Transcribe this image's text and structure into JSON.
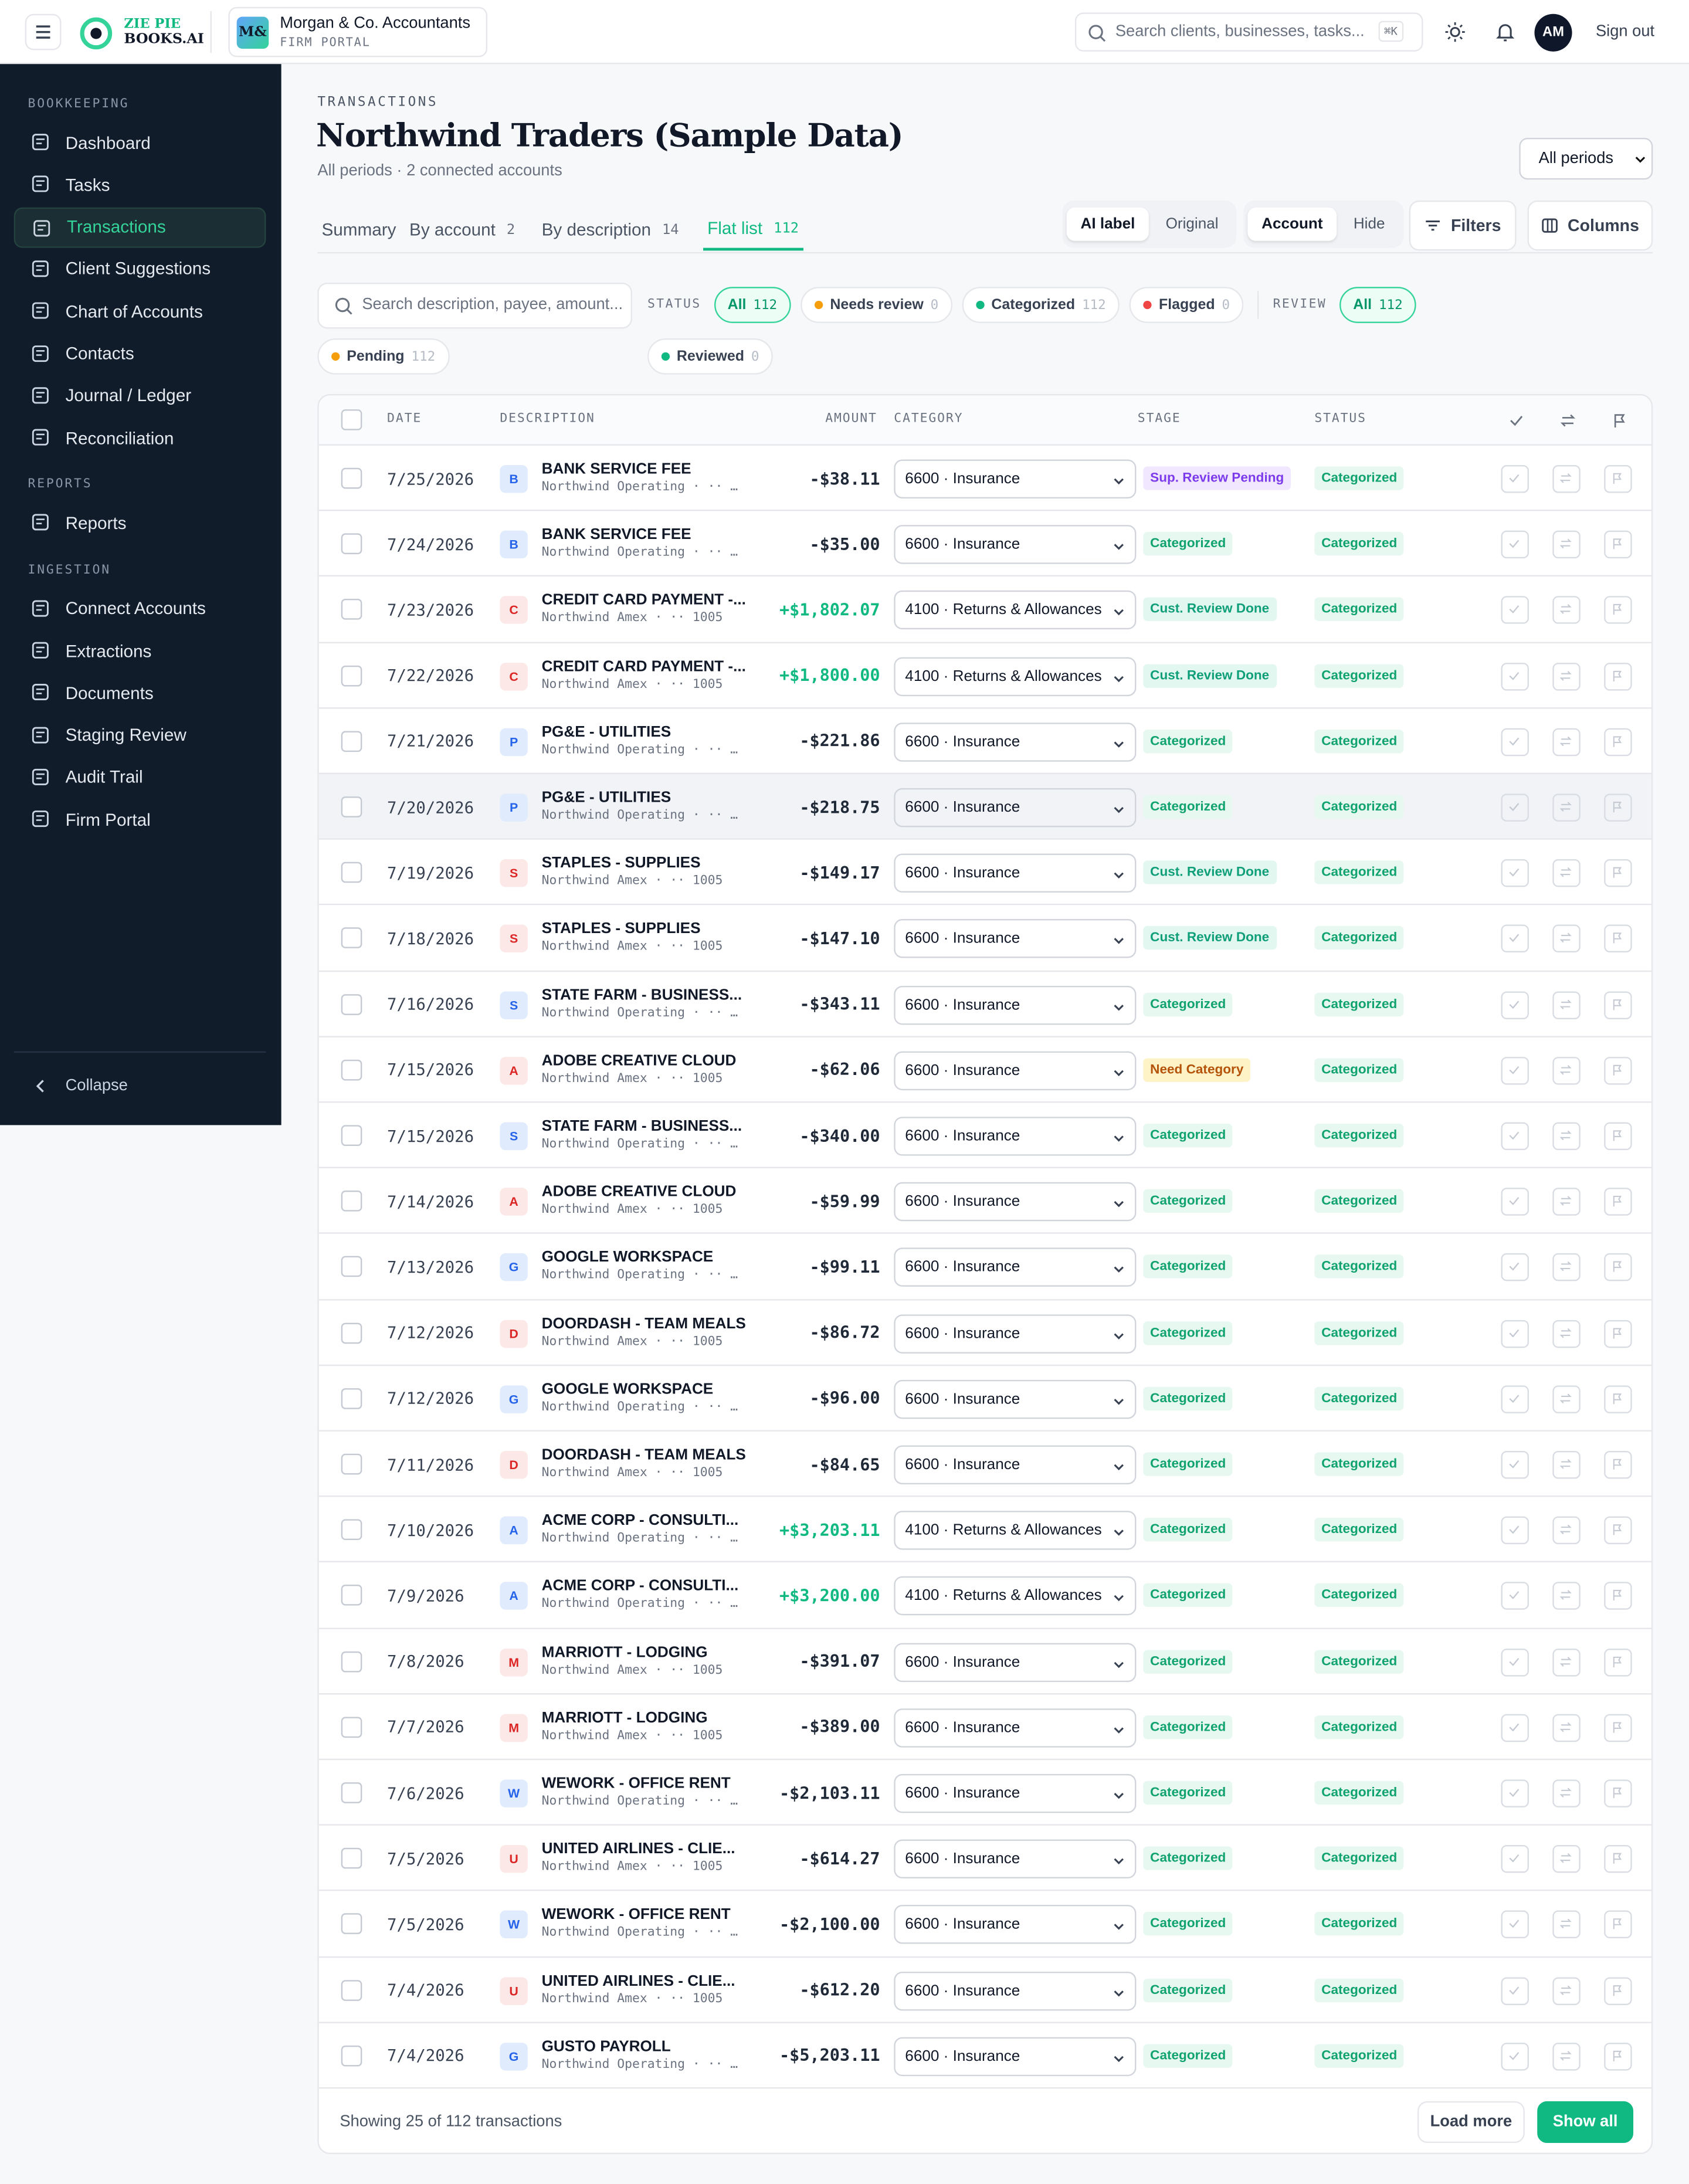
{
  "header": {
    "logo_top": "ZIE PIE",
    "logo_bottom": "BOOKS.AI",
    "firm_initials": "M&",
    "firm_name": "Morgan & Co. Accountants",
    "firm_sub": "FIRM PORTAL",
    "search_placeholder": "Search clients, businesses, tasks...",
    "search_shortcut": "⌘K",
    "avatar": "AM",
    "sign_out": "Sign out"
  },
  "sidebar": {
    "sections": [
      {
        "title": "BOOKKEEPING",
        "items": [
          "Dashboard",
          "Tasks",
          "Transactions",
          "Client Suggestions",
          "Chart of Accounts",
          "Contacts",
          "Journal / Ledger",
          "Reconciliation"
        ]
      },
      {
        "title": "REPORTS",
        "items": [
          "Reports"
        ]
      },
      {
        "title": "INGESTION",
        "items": [
          "Connect Accounts",
          "Extractions",
          "Documents",
          "Staging Review",
          "Audit Trail",
          "Firm Portal"
        ]
      }
    ],
    "active": "Transactions",
    "collapse": "Collapse"
  },
  "page": {
    "eyebrow": "TRANSACTIONS",
    "title": "Northwind Traders (Sample Data)",
    "subtitle": "All periods · 2 connected accounts",
    "period": "All periods",
    "tabs": [
      {
        "label": "Summary"
      },
      {
        "label": "By account",
        "count": 2
      },
      {
        "label": "By description",
        "count": 14
      },
      {
        "label": "Flat list",
        "count": 112,
        "active": true
      }
    ],
    "label_toggle": [
      "AI label",
      "Original"
    ],
    "account_toggle": [
      "Account",
      "Hide"
    ],
    "filters_button": "Filters",
    "columns_button": "Columns",
    "filter_search_placeholder": "Search description, payee, amount...",
    "status_label": "STATUS",
    "status_chips": [
      {
        "label": "All",
        "count": 112,
        "active": true
      },
      {
        "label": "Needs review",
        "count": 0,
        "dot": "#f59e0b"
      },
      {
        "label": "Categorized",
        "count": 112,
        "dot": "#10b981"
      },
      {
        "label": "Flagged",
        "count": 0,
        "dot": "#ef4444"
      }
    ],
    "review_label": "REVIEW",
    "review_chips": [
      {
        "label": "All",
        "count": 112,
        "active": true
      },
      {
        "label": "Reviewed",
        "count": 0,
        "dot": "#10b981"
      },
      {
        "label": "Pending",
        "count": 112,
        "dot": "#f59e0b"
      }
    ]
  },
  "table": {
    "columns": [
      "DATE",
      "DESCRIPTION",
      "AMOUNT",
      "CATEGORY",
      "STAGE",
      "STATUS"
    ],
    "stage_colors": {
      "Sup. Review Pending": [
        "#f1e8ff",
        "#7c3aed"
      ],
      "Categorized": [
        "#e7f8f0",
        "#10a36f"
      ],
      "Cust. Review Done": [
        "#e3f7f1",
        "#0e9f78"
      ],
      "Need Category": [
        "#fef3c7",
        "#b45309"
      ]
    },
    "rows": [
      {
        "date": "7/25/2026",
        "initial": "B",
        "description": "BANK SERVICE FEE",
        "account": "Northwind Operating · ·· …",
        "amount": "-$38.11",
        "category": "6600 · Insurance",
        "stage": "Sup. Review Pending",
        "status": "Categorized"
      },
      {
        "date": "7/24/2026",
        "initial": "B",
        "description": "BANK SERVICE FEE",
        "account": "Northwind Operating · ·· …",
        "amount": "-$35.00",
        "category": "6600 · Insurance",
        "stage": "Categorized",
        "status": "Categorized"
      },
      {
        "date": "7/23/2026",
        "initial": "C",
        "description": "CREDIT CARD PAYMENT -...",
        "account": "Northwind Amex · ·· 1005",
        "amount": "+$1,802.07",
        "category": "4100 · Returns & Allowances",
        "stage": "Cust. Review Done",
        "status": "Categorized"
      },
      {
        "date": "7/22/2026",
        "initial": "C",
        "description": "CREDIT CARD PAYMENT -...",
        "account": "Northwind Amex · ·· 1005",
        "amount": "+$1,800.00",
        "category": "4100 · Returns & Allowances",
        "stage": "Cust. Review Done",
        "status": "Categorized"
      },
      {
        "date": "7/21/2026",
        "initial": "P",
        "description": "PG&E - UTILITIES",
        "account": "Northwind Operating · ·· …",
        "amount": "-$221.86",
        "category": "6600 · Insurance",
        "stage": "Categorized",
        "status": "Categorized"
      },
      {
        "date": "7/20/2026",
        "initial": "P",
        "description": "PG&E - UTILITIES",
        "account": "Northwind Operating · ·· …",
        "amount": "-$218.75",
        "category": "6600 · Insurance",
        "stage": "Categorized",
        "status": "Categorized",
        "highlight": true
      },
      {
        "date": "7/19/2026",
        "initial": "S",
        "description": "STAPLES - SUPPLIES",
        "account": "Northwind Amex · ·· 1005",
        "amount": "-$149.17",
        "category": "6600 · Insurance",
        "stage": "Cust. Review Done",
        "status": "Categorized"
      },
      {
        "date": "7/18/2026",
        "initial": "S",
        "description": "STAPLES - SUPPLIES",
        "account": "Northwind Amex · ·· 1005",
        "amount": "-$147.10",
        "category": "6600 · Insurance",
        "stage": "Cust. Review Done",
        "status": "Categorized"
      },
      {
        "date": "7/16/2026",
        "initial": "S",
        "description": "STATE FARM - BUSINESS...",
        "account": "Northwind Operating · ·· …",
        "amount": "-$343.11",
        "category": "6600 · Insurance",
        "stage": "Categorized",
        "status": "Categorized"
      },
      {
        "date": "7/15/2026",
        "initial": "A",
        "description": "ADOBE CREATIVE CLOUD",
        "account": "Northwind Amex · ·· 1005",
        "amount": "-$62.06",
        "category": "6600 · Insurance",
        "stage": "Need Category",
        "status": "Categorized"
      },
      {
        "date": "7/15/2026",
        "initial": "S",
        "description": "STATE FARM - BUSINESS...",
        "account": "Northwind Operating · ·· …",
        "amount": "-$340.00",
        "category": "6600 · Insurance",
        "stage": "Categorized",
        "status": "Categorized"
      },
      {
        "date": "7/14/2026",
        "initial": "A",
        "description": "ADOBE CREATIVE CLOUD",
        "account": "Northwind Amex · ·· 1005",
        "amount": "-$59.99",
        "category": "6600 · Insurance",
        "stage": "Categorized",
        "status": "Categorized"
      },
      {
        "date": "7/13/2026",
        "initial": "G",
        "description": "GOOGLE WORKSPACE",
        "account": "Northwind Operating · ·· …",
        "amount": "-$99.11",
        "category": "6600 · Insurance",
        "stage": "Categorized",
        "status": "Categorized"
      },
      {
        "date": "7/12/2026",
        "initial": "D",
        "description": "DOORDASH - TEAM MEALS",
        "account": "Northwind Amex · ·· 1005",
        "amount": "-$86.72",
        "category": "6600 · Insurance",
        "stage": "Categorized",
        "status": "Categorized"
      },
      {
        "date": "7/12/2026",
        "initial": "G",
        "description": "GOOGLE WORKSPACE",
        "account": "Northwind Operating · ·· …",
        "amount": "-$96.00",
        "category": "6600 · Insurance",
        "stage": "Categorized",
        "status": "Categorized"
      },
      {
        "date": "7/11/2026",
        "initial": "D",
        "description": "DOORDASH - TEAM MEALS",
        "account": "Northwind Amex · ·· 1005",
        "amount": "-$84.65",
        "category": "6600 · Insurance",
        "stage": "Categorized",
        "status": "Categorized"
      },
      {
        "date": "7/10/2026",
        "initial": "A",
        "description": "ACME CORP - CONSULTI...",
        "account": "Northwind Operating · ·· …",
        "amount": "+$3,203.11",
        "category": "4100 · Returns & Allowances",
        "stage": "Categorized",
        "status": "Categorized"
      },
      {
        "date": "7/9/2026",
        "initial": "A",
        "description": "ACME CORP - CONSULTI...",
        "account": "Northwind Operating · ·· …",
        "amount": "+$3,200.00",
        "category": "4100 · Returns & Allowances",
        "stage": "Categorized",
        "status": "Categorized"
      },
      {
        "date": "7/8/2026",
        "initial": "M",
        "description": "MARRIOTT - LODGING",
        "account": "Northwind Amex · ·· 1005",
        "amount": "-$391.07",
        "category": "6600 · Insurance",
        "stage": "Categorized",
        "status": "Categorized"
      },
      {
        "date": "7/7/2026",
        "initial": "M",
        "description": "MARRIOTT - LODGING",
        "account": "Northwind Amex · ·· 1005",
        "amount": "-$389.00",
        "category": "6600 · Insurance",
        "stage": "Categorized",
        "status": "Categorized"
      },
      {
        "date": "7/6/2026",
        "initial": "W",
        "description": "WEWORK - OFFICE RENT",
        "account": "Northwind Operating · ·· …",
        "amount": "-$2,103.11",
        "category": "6600 · Insurance",
        "stage": "Categorized",
        "status": "Categorized"
      },
      {
        "date": "7/5/2026",
        "initial": "U",
        "description": "UNITED AIRLINES - CLIE...",
        "account": "Northwind Amex · ·· 1005",
        "amount": "-$614.27",
        "category": "6600 · Insurance",
        "stage": "Categorized",
        "status": "Categorized"
      },
      {
        "date": "7/5/2026",
        "initial": "W",
        "description": "WEWORK - OFFICE RENT",
        "account": "Northwind Operating · ·· …",
        "amount": "-$2,100.00",
        "category": "6600 · Insurance",
        "stage": "Categorized",
        "status": "Categorized"
      },
      {
        "date": "7/4/2026",
        "initial": "U",
        "description": "UNITED AIRLINES - CLIE...",
        "account": "Northwind Amex · ·· 1005",
        "amount": "-$612.20",
        "category": "6600 · Insurance",
        "stage": "Categorized",
        "status": "Categorized"
      },
      {
        "date": "7/4/2026",
        "initial": "G",
        "description": "GUSTO PAYROLL",
        "account": "Northwind Operating · ·· …",
        "amount": "-$5,203.11",
        "category": "6600 · Insurance",
        "stage": "Categorized",
        "status": "Categorized"
      }
    ],
    "footer": "Showing 25 of 112 transactions",
    "load_more": "Load more",
    "show_all": "Show all"
  }
}
